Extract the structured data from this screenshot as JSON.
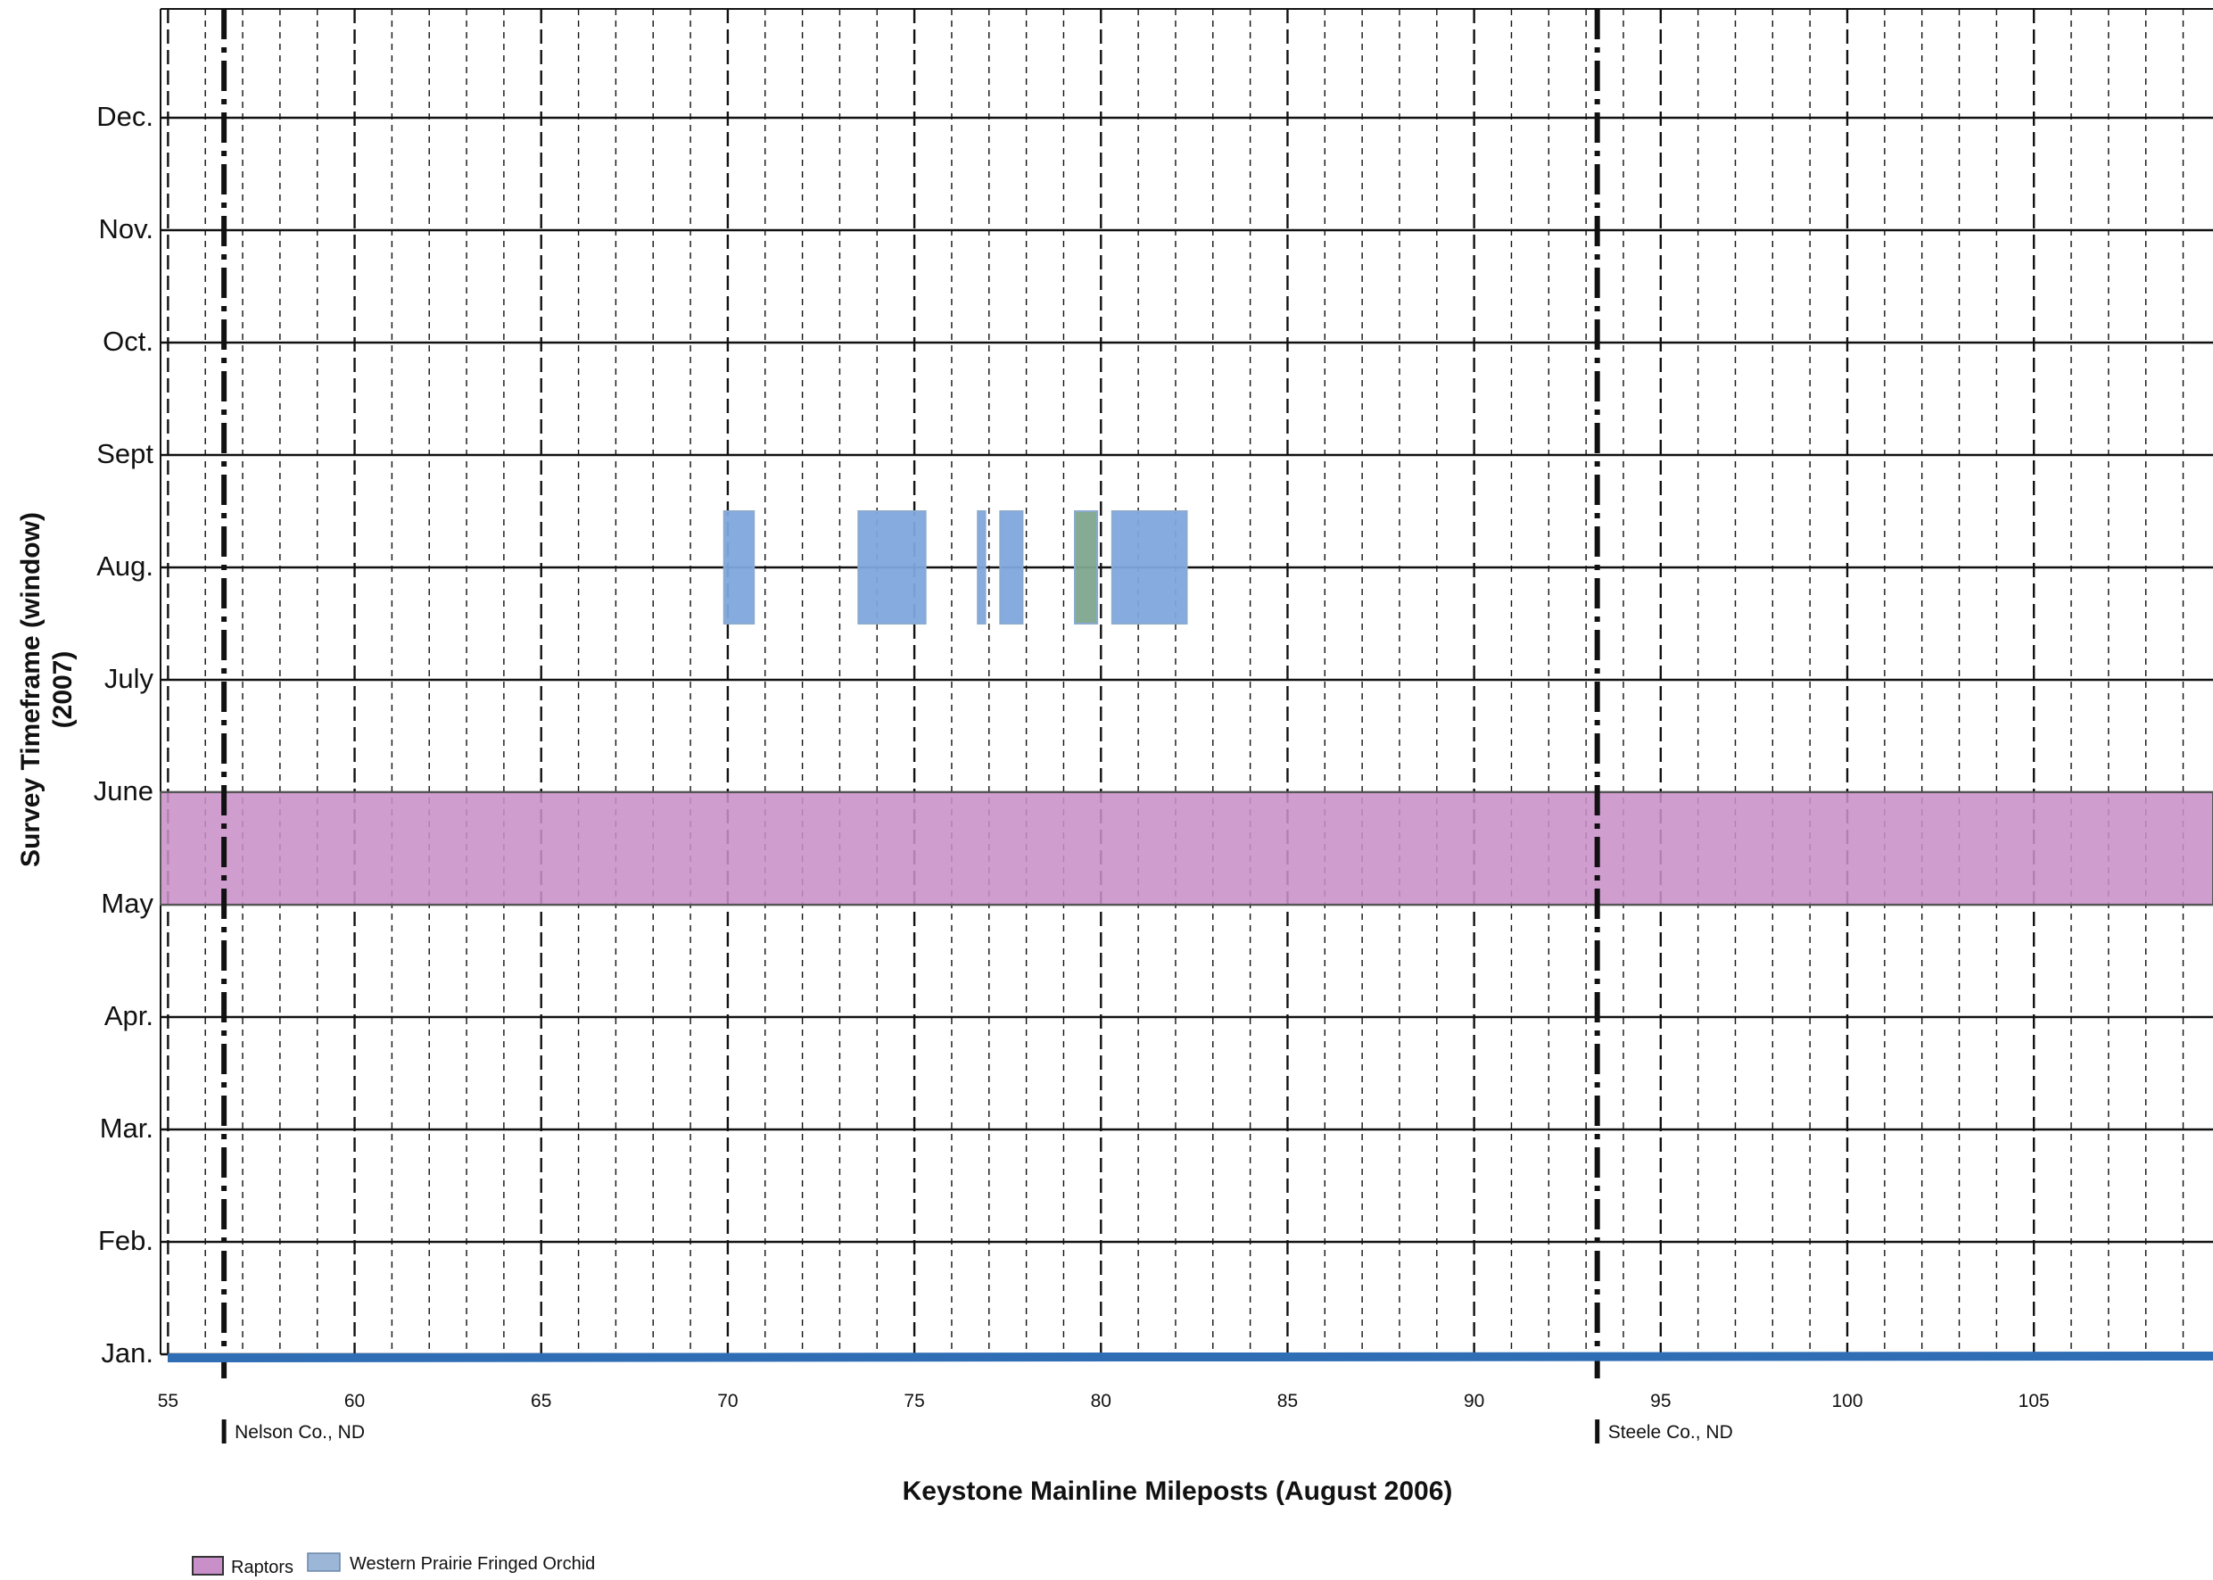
{
  "chart_data": {
    "type": "gantt",
    "xlabel": "Keystone Mainline Mileposts (August 2006)",
    "ylabel": "Survey Timeframe (window)",
    "ylabel_sub": "(2007)",
    "x_ticks": [
      55,
      60,
      65,
      70,
      75,
      80,
      85,
      90,
      95,
      100,
      105
    ],
    "xlim": [
      54.8,
      109.8
    ],
    "months": [
      "Jan.",
      "Feb.",
      "Mar.",
      "Apr.",
      "May",
      "June",
      "July",
      "Aug.",
      "Sept",
      "Oct.",
      "Nov.",
      "Dec."
    ],
    "county_boundaries": [
      {
        "milepost": 56.5,
        "label": "Nelson Co., ND"
      },
      {
        "milepost": 93.3,
        "label": "Steele Co., ND"
      }
    ],
    "series": [
      {
        "name": "Raptors",
        "color": "#c98fc8",
        "segments": [
          {
            "mp_start": 54.8,
            "mp_end": 109.8,
            "month_start": 4.0,
            "month_end": 5.0
          }
        ]
      },
      {
        "name": "Western Prairie Fringed Orchid",
        "color": "#7fa7dc",
        "segments": [
          {
            "mp_start": 69.9,
            "mp_end": 70.7,
            "month_start": 6.5,
            "month_end": 7.5
          },
          {
            "mp_start": 73.5,
            "mp_end": 75.3,
            "month_start": 6.5,
            "month_end": 7.5
          },
          {
            "mp_start": 76.7,
            "mp_end": 76.9,
            "month_start": 6.5,
            "month_end": 7.5
          },
          {
            "mp_start": 77.3,
            "mp_end": 77.9,
            "month_start": 6.5,
            "month_end": 7.5
          },
          {
            "mp_start": 79.3,
            "mp_end": 79.9,
            "month_start": 6.5,
            "month_end": 7.5,
            "color": "#7ea68f"
          },
          {
            "mp_start": 80.3,
            "mp_end": 82.3,
            "month_start": 6.5,
            "month_end": 7.5
          }
        ]
      }
    ],
    "legend": {
      "placement": "bottom-left",
      "items": [
        "Raptors",
        "Western Prairie Fringed Orchid"
      ]
    },
    "grid": true,
    "pipeline_color": "#2f6db5"
  }
}
